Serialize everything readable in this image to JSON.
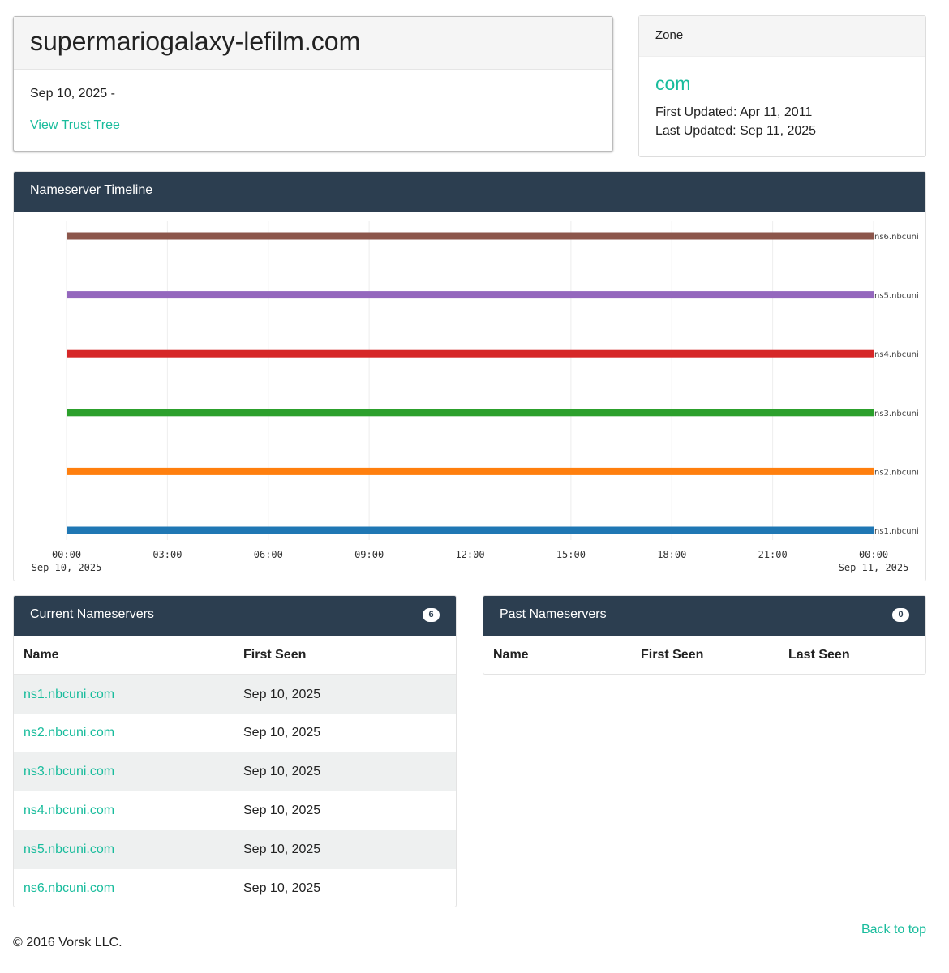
{
  "domain": {
    "name": "supermariogalaxy-lefilm.com",
    "date_range": "Sep 10, 2025 -",
    "trust_tree_link": "View Trust Tree"
  },
  "zone": {
    "header": "Zone",
    "name": "com",
    "first_updated": "First Updated: Apr 11, 2011",
    "last_updated": "Last Updated: Sep 11, 2025"
  },
  "timeline": {
    "title": "Nameserver Timeline"
  },
  "chart_data": {
    "type": "timeline",
    "x_range": [
      "2025-09-10 00:00",
      "2025-09-11 00:00"
    ],
    "ticks": [
      {
        "label": "00:00",
        "sub": "Sep 10, 2025"
      },
      {
        "label": "03:00"
      },
      {
        "label": "06:00"
      },
      {
        "label": "09:00"
      },
      {
        "label": "12:00"
      },
      {
        "label": "15:00"
      },
      {
        "label": "18:00"
      },
      {
        "label": "21:00"
      },
      {
        "label": "00:00",
        "sub": "Sep 11, 2025"
      }
    ],
    "grid": true,
    "series": [
      {
        "name": "ns6.nbcuni",
        "start": "2025-09-10 00:00",
        "end": "2025-09-11 00:00",
        "color": "#8c564b"
      },
      {
        "name": "ns5.nbcuni",
        "start": "2025-09-10 00:00",
        "end": "2025-09-11 00:00",
        "color": "#9467bd"
      },
      {
        "name": "ns4.nbcuni",
        "start": "2025-09-10 00:00",
        "end": "2025-09-11 00:00",
        "color": "#d62728"
      },
      {
        "name": "ns3.nbcuni",
        "start": "2025-09-10 00:00",
        "end": "2025-09-11 00:00",
        "color": "#2ca02c"
      },
      {
        "name": "ns2.nbcuni",
        "start": "2025-09-10 00:00",
        "end": "2025-09-11 00:00",
        "color": "#ff7f0e"
      },
      {
        "name": "ns1.nbcuni",
        "start": "2025-09-10 00:00",
        "end": "2025-09-11 00:00",
        "color": "#1f77b4"
      }
    ]
  },
  "current": {
    "title": "Current Nameservers",
    "count": "6",
    "columns": [
      "Name",
      "First Seen"
    ],
    "rows": [
      [
        "ns1.nbcuni.com",
        "Sep 10, 2025"
      ],
      [
        "ns2.nbcuni.com",
        "Sep 10, 2025"
      ],
      [
        "ns3.nbcuni.com",
        "Sep 10, 2025"
      ],
      [
        "ns4.nbcuni.com",
        "Sep 10, 2025"
      ],
      [
        "ns5.nbcuni.com",
        "Sep 10, 2025"
      ],
      [
        "ns6.nbcuni.com",
        "Sep 10, 2025"
      ]
    ]
  },
  "past": {
    "title": "Past Nameservers",
    "count": "0",
    "columns": [
      "Name",
      "First Seen",
      "Last Seen"
    ]
  },
  "footer": {
    "copyright": "© 2016 Vorsk LLC.",
    "back_to_top": "Back to top"
  },
  "colors": {
    "accent": "#18bc9c",
    "header": "#2c3e50"
  }
}
